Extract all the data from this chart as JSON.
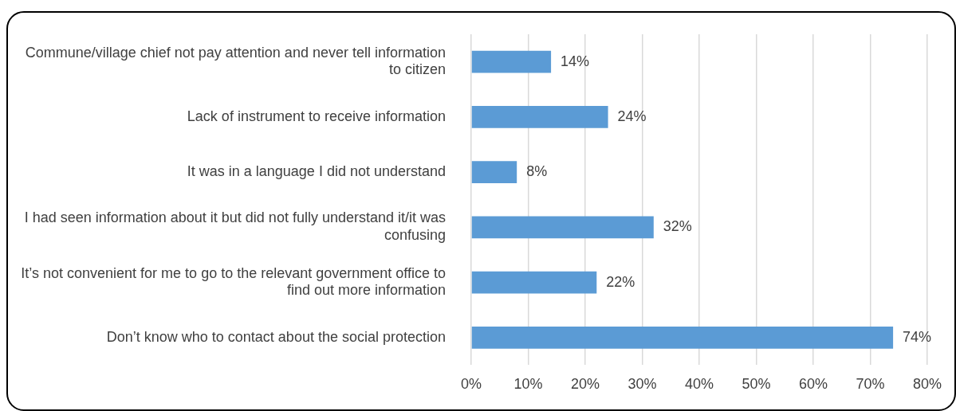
{
  "chart_data": {
    "type": "bar",
    "orientation": "horizontal",
    "categories": [
      "Commune/village chief not pay attention and never tell information to citizen",
      "Lack of instrument to receive information",
      "It was in a language I did not understand",
      "I had seen information about it but did not fully understand it/it was confusing",
      "It’s not convenient for me to go to the relevant government office to find out more information",
      "Don’t know who to contact about the social protection"
    ],
    "values": [
      14,
      24,
      8,
      32,
      22,
      74
    ],
    "value_labels": [
      "14%",
      "24%",
      "8%",
      "32%",
      "22%",
      "74%"
    ],
    "color": "#5b9bd5",
    "xlim": [
      0,
      80
    ],
    "xticks": [
      {
        "value": 0,
        "label": "0%"
      },
      {
        "value": 10,
        "label": "10%"
      },
      {
        "value": 20,
        "label": "20%"
      },
      {
        "value": 30,
        "label": "30%"
      },
      {
        "value": 40,
        "label": "40%"
      },
      {
        "value": 50,
        "label": "50%"
      },
      {
        "value": 60,
        "label": "60%"
      },
      {
        "value": 70,
        "label": "70%"
      },
      {
        "value": 80,
        "label": "80%"
      }
    ],
    "grid": "x",
    "legend": false
  }
}
